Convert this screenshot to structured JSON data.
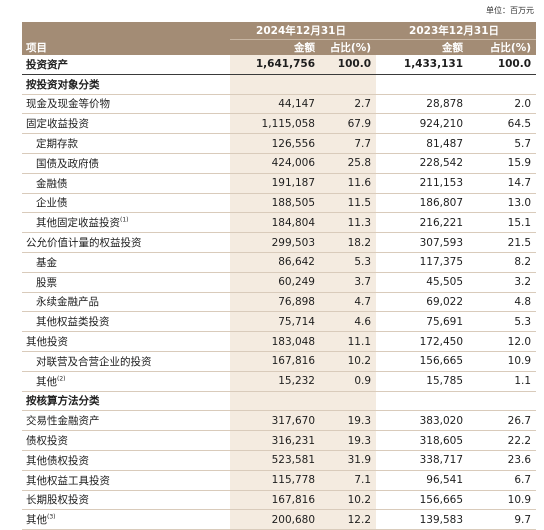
{
  "unit": "单位：百万元",
  "headers": {
    "year_2024": "2024年12月31日",
    "year_2023": "2023年12月31日",
    "item": "项目",
    "amount": "金额",
    "ratio": "占比(%)"
  },
  "total": {
    "label": "投资资产",
    "a24": "1,641,756",
    "r24": "100.0",
    "a23": "1,433,131",
    "r23": "100.0"
  },
  "section1": "按投资对象分类",
  "rows1": [
    {
      "label": "现金及现金等价物",
      "a24": "44,147",
      "r24": "2.7",
      "a23": "28,878",
      "r23": "2.0",
      "indent": 0
    },
    {
      "label": "固定收益投资",
      "a24": "1,115,058",
      "r24": "67.9",
      "a23": "924,210",
      "r23": "64.5",
      "indent": 0
    },
    {
      "label": "定期存款",
      "a24": "126,556",
      "r24": "7.7",
      "a23": "81,487",
      "r23": "5.7",
      "indent": 1
    },
    {
      "label": "国债及政府债",
      "a24": "424,006",
      "r24": "25.8",
      "a23": "228,542",
      "r23": "15.9",
      "indent": 1
    },
    {
      "label": "金融债",
      "a24": "191,187",
      "r24": "11.6",
      "a23": "211,153",
      "r23": "14.7",
      "indent": 1
    },
    {
      "label": "企业债",
      "a24": "188,505",
      "r24": "11.5",
      "a23": "186,807",
      "r23": "13.0",
      "indent": 1
    },
    {
      "label": "其他固定收益投资",
      "note": "(1)",
      "a24": "184,804",
      "r24": "11.3",
      "a23": "216,221",
      "r23": "15.1",
      "indent": 1
    },
    {
      "label": "公允价值计量的权益投资",
      "a24": "299,503",
      "r24": "18.2",
      "a23": "307,593",
      "r23": "21.5",
      "indent": 0
    },
    {
      "label": "基金",
      "a24": "86,642",
      "r24": "5.3",
      "a23": "117,375",
      "r23": "8.2",
      "indent": 1
    },
    {
      "label": "股票",
      "a24": "60,249",
      "r24": "3.7",
      "a23": "45,505",
      "r23": "3.2",
      "indent": 1
    },
    {
      "label": "永续金融产品",
      "a24": "76,898",
      "r24": "4.7",
      "a23": "69,022",
      "r23": "4.8",
      "indent": 1
    },
    {
      "label": "其他权益类投资",
      "a24": "75,714",
      "r24": "4.6",
      "a23": "75,691",
      "r23": "5.3",
      "indent": 1
    },
    {
      "label": "其他投资",
      "a24": "183,048",
      "r24": "11.1",
      "a23": "172,450",
      "r23": "12.0",
      "indent": 0
    },
    {
      "label": "对联营及合营企业的投资",
      "a24": "167,816",
      "r24": "10.2",
      "a23": "156,665",
      "r23": "10.9",
      "indent": 1
    },
    {
      "label": "其他",
      "note": "(2)",
      "a24": "15,232",
      "r24": "0.9",
      "a23": "15,785",
      "r23": "1.1",
      "indent": 1
    }
  ],
  "section2": "按核算方法分类",
  "rows2": [
    {
      "label": "交易性金融资产",
      "a24": "317,670",
      "r24": "19.3",
      "a23": "383,020",
      "r23": "26.7",
      "indent": 0
    },
    {
      "label": "债权投资",
      "a24": "316,231",
      "r24": "19.3",
      "a23": "318,605",
      "r23": "22.2",
      "indent": 0
    },
    {
      "label": "其他债权投资",
      "a24": "523,581",
      "r24": "31.9",
      "a23": "338,717",
      "r23": "23.6",
      "indent": 0
    },
    {
      "label": "其他权益工具投资",
      "a24": "115,778",
      "r24": "7.1",
      "a23": "96,541",
      "r23": "6.7",
      "indent": 0
    },
    {
      "label": "长期股权投资",
      "a24": "167,816",
      "r24": "10.2",
      "a23": "156,665",
      "r23": "10.9",
      "indent": 0
    },
    {
      "label": "其他",
      "note": "(3)",
      "a24": "200,680",
      "r24": "12.2",
      "a23": "139,583",
      "r23": "9.7",
      "indent": 0
    }
  ]
}
